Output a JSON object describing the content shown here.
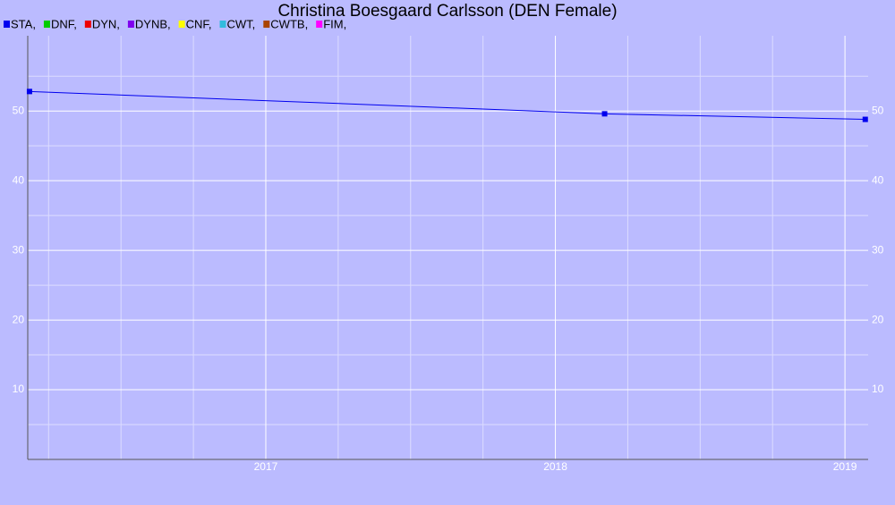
{
  "chart_data": {
    "type": "line",
    "title": "Christina Boesgaard Carlsson (DEN Female)",
    "x": [
      2016.184,
      2018.17,
      2019.07
    ],
    "series": [
      {
        "name": "STA,",
        "color": "#0000ee",
        "values": [
          52.8,
          49.6,
          48.8
        ]
      },
      {
        "name": "DNF,",
        "color": "#00cc00",
        "values": [
          null,
          null,
          null
        ]
      },
      {
        "name": "DYN,",
        "color": "#ee0000",
        "values": [
          null,
          null,
          null
        ]
      },
      {
        "name": "DYNB,",
        "color": "#7f00ee",
        "values": [
          null,
          null,
          null
        ]
      },
      {
        "name": "CNF,",
        "color": "#ffff00",
        "values": [
          null,
          null,
          null
        ]
      },
      {
        "name": "CWT,",
        "color": "#33bbdd",
        "values": [
          null,
          null,
          null
        ]
      },
      {
        "name": "CWTB,",
        "color": "#aa4400",
        "values": [
          null,
          null,
          null
        ]
      },
      {
        "name": "FIM,",
        "color": "#ff00ff",
        "values": [
          null,
          null,
          null
        ]
      }
    ],
    "xlim": [
      2016.178,
      2019.08
    ],
    "ylim": [
      0,
      60.8
    ],
    "xticks": [
      2017,
      2018,
      2019
    ],
    "yticks": [
      10,
      20,
      30,
      40,
      50
    ],
    "xminorticks": [
      2016.25,
      2016.5,
      2016.75,
      2017.25,
      2017.5,
      2017.75,
      2018.25,
      2018.5,
      2018.75
    ],
    "yminorticks": [
      5,
      15,
      25,
      35,
      45,
      55
    ],
    "grid": true,
    "legend": "top-left"
  }
}
